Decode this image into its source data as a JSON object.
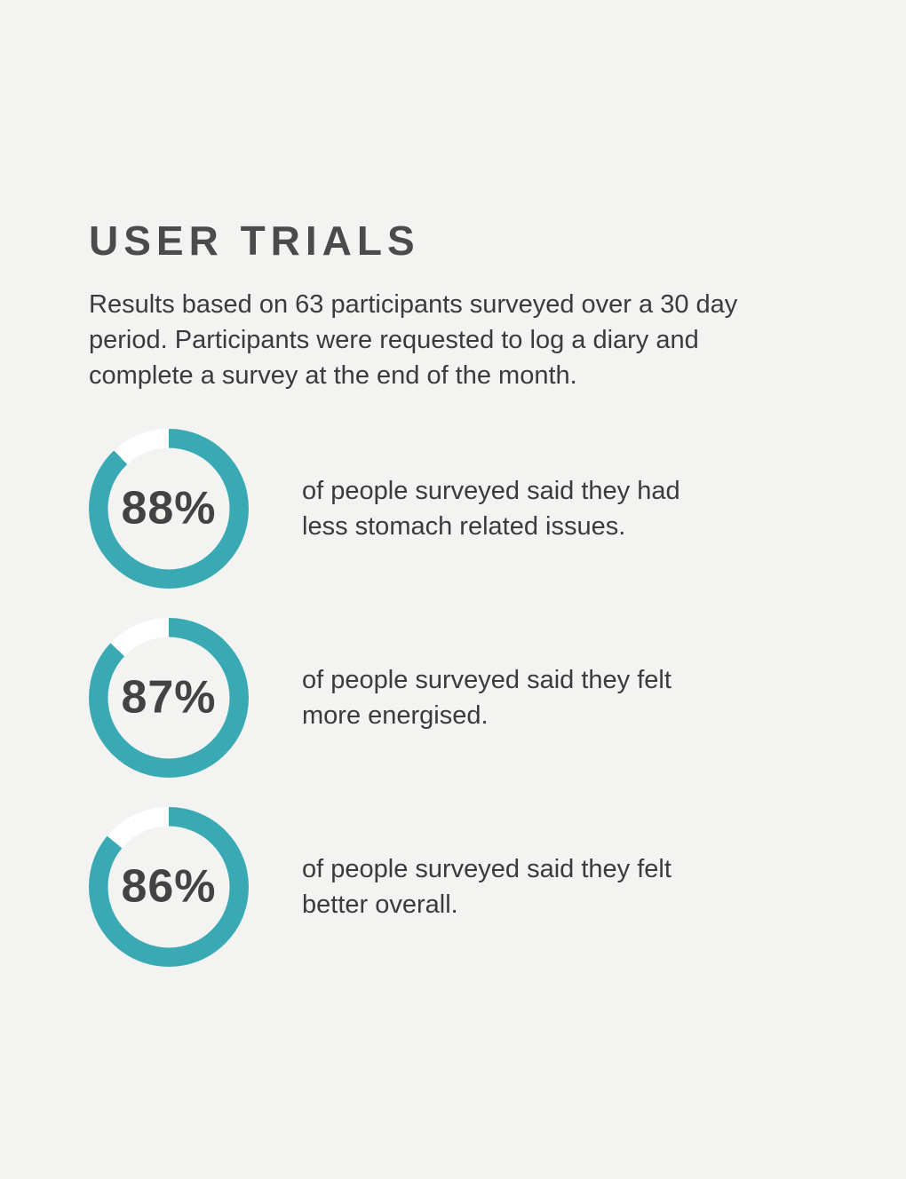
{
  "page": {
    "background_color": "#f3f3f2",
    "title": "USER TRIALS",
    "intro": "Results based on 63 participants surveyed over a 30 day period. Participants were requested to log a diary and complete a survey at the end of the month."
  },
  "colors": {
    "accent_teal": "#39a9b4",
    "track_white": "#ffffff",
    "heading_gray": "#4b4b4d",
    "body_text": "#3b3b3c",
    "percent_text": "#434244"
  },
  "chart_data": {
    "type": "pie",
    "variant": "donut",
    "title": "USER TRIALS",
    "subtitle": "Results based on 63 participants surveyed over a 30 day period. Participants were requested to log a diary and complete a survey at the end of the month.",
    "participants": 63,
    "survey_period_days": 30,
    "legend_position": "right-of-each-donut",
    "colors": {
      "fill": "#39a9b4",
      "track": "#ffffff"
    },
    "series": [
      {
        "name": "less stomach related issues",
        "value": 88,
        "label": "88%",
        "description": "of people surveyed said they had less stomach related issues."
      },
      {
        "name": "more energised",
        "value": 87,
        "label": "87%",
        "description": "of people surveyed said they felt more energised."
      },
      {
        "name": "better overall",
        "value": 86,
        "label": "86%",
        "description": "of people surveyed said they felt better overall."
      }
    ]
  }
}
